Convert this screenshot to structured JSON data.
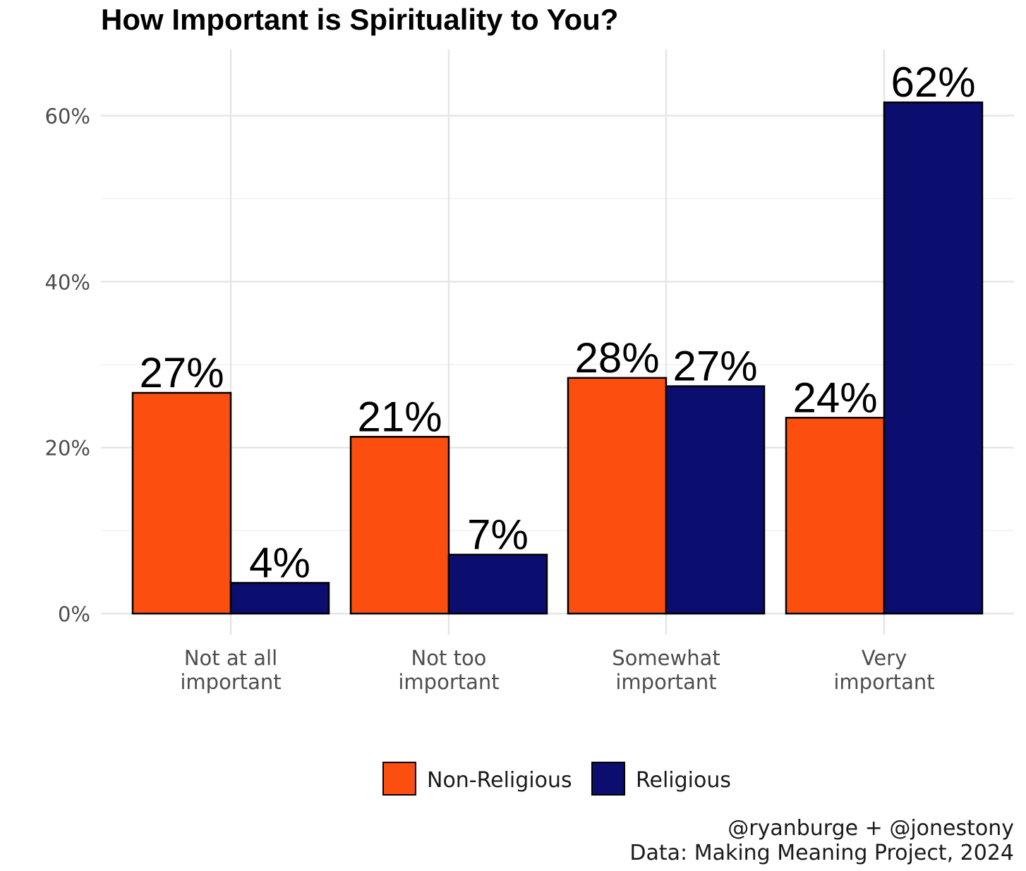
{
  "chart_data": {
    "type": "bar",
    "title": "How Important is Spirituality to You?",
    "categories": [
      [
        "Not at all",
        "important"
      ],
      [
        "Not too",
        "important"
      ],
      [
        "Somewhat",
        "important"
      ],
      [
        "Very",
        "important"
      ]
    ],
    "series": [
      {
        "name": "Non-Religious",
        "color": "#FC4F0F",
        "values": [
          26.6,
          21.3,
          28.4,
          23.6
        ],
        "labels": [
          "27%",
          "21%",
          "28%",
          "24%"
        ]
      },
      {
        "name": "Religious",
        "color": "#0B0E6E",
        "values": [
          3.7,
          7.1,
          27.4,
          61.6
        ],
        "labels": [
          "4%",
          "7%",
          "27%",
          "62%"
        ]
      }
    ],
    "ylim": [
      0,
      66
    ],
    "yticks": [
      0,
      20,
      40,
      60
    ],
    "ytick_labels": [
      "0%",
      "20%",
      "40%",
      "60%"
    ],
    "grid": true,
    "legend_position": "bottom",
    "caption": [
      "@ryanburge + @jonestony",
      "Data: Making Meaning Project, 2024"
    ]
  }
}
